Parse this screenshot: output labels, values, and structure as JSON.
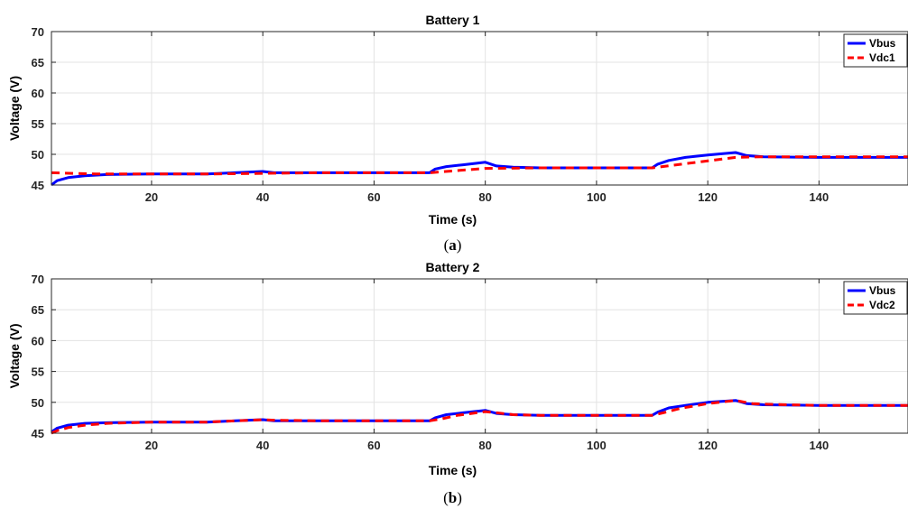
{
  "chart_data": [
    {
      "type": "line",
      "title": "Battery 1",
      "caption_letter": "a",
      "xlabel": "Time (s)",
      "ylabel": "Voltage (V)",
      "xlim": [
        2,
        156
      ],
      "ylim": [
        45,
        70
      ],
      "xticks": [
        20,
        40,
        60,
        80,
        100,
        120,
        140
      ],
      "yticks": [
        45,
        50,
        55,
        60,
        65,
        70
      ],
      "grid": true,
      "legend_position": "top-right",
      "series": [
        {
          "name": "Vbus",
          "color": "#0000ff",
          "style": "solid",
          "x": [
            2,
            3,
            5,
            8,
            12,
            20,
            30,
            35,
            40,
            42,
            50,
            60,
            70,
            71,
            73,
            76,
            80,
            82,
            85,
            90,
            100,
            110,
            111,
            113,
            116,
            120,
            125,
            127,
            130,
            140,
            156
          ],
          "y": [
            45.0,
            45.7,
            46.2,
            46.5,
            46.7,
            46.8,
            46.8,
            47.0,
            47.2,
            47.0,
            47.0,
            47.0,
            47.0,
            47.6,
            48.0,
            48.3,
            48.7,
            48.1,
            47.9,
            47.8,
            47.8,
            47.8,
            48.4,
            49.0,
            49.5,
            49.9,
            50.3,
            49.8,
            49.6,
            49.5,
            49.5
          ]
        },
        {
          "name": "Vdc1",
          "color": "#ff0000",
          "style": "dashed",
          "x": [
            2,
            10,
            20,
            30,
            40,
            50,
            60,
            70,
            80,
            90,
            100,
            110,
            125,
            130,
            140,
            156
          ],
          "y": [
            47.0,
            46.8,
            46.8,
            46.8,
            46.9,
            47.0,
            47.0,
            47.0,
            47.7,
            47.8,
            47.8,
            47.8,
            49.5,
            49.6,
            49.6,
            49.6
          ]
        }
      ]
    },
    {
      "type": "line",
      "title": "Battery 2",
      "caption_letter": "b",
      "xlabel": "Time (s)",
      "ylabel": "Voltage (V)",
      "xlim": [
        2,
        156
      ],
      "ylim": [
        45,
        70
      ],
      "xticks": [
        20,
        40,
        60,
        80,
        100,
        120,
        140
      ],
      "yticks": [
        45,
        50,
        55,
        60,
        65,
        70
      ],
      "grid": true,
      "legend_position": "top-right",
      "series": [
        {
          "name": "Vbus",
          "color": "#0000ff",
          "style": "solid",
          "x": [
            2,
            3,
            5,
            8,
            12,
            20,
            30,
            35,
            40,
            42,
            50,
            60,
            70,
            71,
            73,
            76,
            80,
            82,
            85,
            90,
            100,
            110,
            111,
            113,
            116,
            120,
            125,
            127,
            130,
            140,
            156
          ],
          "y": [
            45.2,
            45.8,
            46.3,
            46.6,
            46.7,
            46.8,
            46.8,
            47.0,
            47.2,
            47.0,
            47.0,
            47.0,
            47.0,
            47.5,
            48.0,
            48.3,
            48.7,
            48.2,
            48.0,
            47.9,
            47.9,
            47.9,
            48.4,
            49.1,
            49.5,
            50.0,
            50.3,
            49.8,
            49.6,
            49.5,
            49.5
          ]
        },
        {
          "name": "Vdc2",
          "color": "#ff0000",
          "style": "dashed",
          "x": [
            2,
            3,
            5,
            8,
            12,
            20,
            30,
            35,
            40,
            42,
            50,
            60,
            70,
            72,
            75,
            80,
            82,
            85,
            90,
            100,
            110,
            112,
            115,
            120,
            125,
            128,
            130,
            140,
            156
          ],
          "y": [
            45.0,
            45.4,
            45.9,
            46.3,
            46.6,
            46.8,
            46.8,
            47.0,
            47.2,
            47.1,
            47.0,
            47.0,
            47.0,
            47.3,
            47.9,
            48.5,
            48.3,
            48.0,
            47.9,
            47.9,
            47.9,
            48.3,
            49.0,
            49.8,
            50.3,
            49.8,
            49.7,
            49.5,
            49.5
          ]
        }
      ]
    }
  ]
}
